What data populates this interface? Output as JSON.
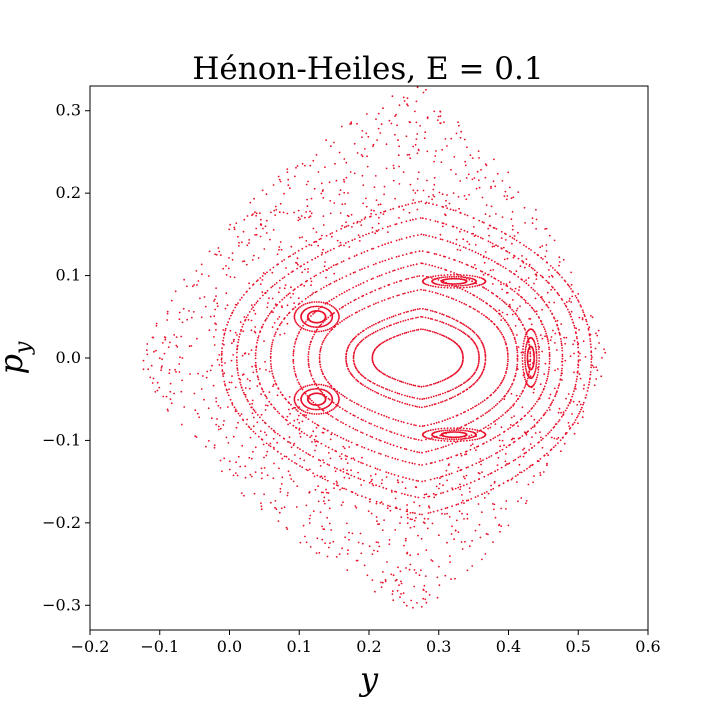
{
  "chart_data": {
    "type": "scatter",
    "title": "Hénon-Heiles, E = 0.1",
    "xlabel": "y",
    "ylabel_base": "p",
    "ylabel_sub": "y",
    "xlim": [
      -0.2,
      0.6
    ],
    "ylim": [
      -0.33,
      0.33
    ],
    "xticks": [
      -0.2,
      -0.1,
      0.0,
      0.1,
      0.2,
      0.3,
      0.4,
      0.5,
      0.6
    ],
    "xtick_labels": [
      "−0.2",
      "−0.1",
      "0.0",
      "0.1",
      "0.2",
      "0.3",
      "0.4",
      "0.5",
      "0.6"
    ],
    "yticks": [
      0.3,
      0.2,
      0.1,
      0.0,
      -0.1,
      -0.2,
      -0.3
    ],
    "ytick_labels": [
      "0.3",
      "0.2",
      "0.1",
      "0.0",
      "−0.1",
      "−0.2",
      "−0.3"
    ],
    "grid": false,
    "marker_color": "#e8102a",
    "regular_orbits": [
      {
        "center": [
          0.275,
          0.0
        ],
        "ry_x": 0.065,
        "ry_p": 0.035
      },
      {
        "center": [
          0.275,
          0.0
        ],
        "ry_x": 0.09,
        "ry_p": 0.05
      },
      {
        "center": [
          0.275,
          0.0
        ],
        "ry_x": 0.1,
        "ry_p": 0.06
      },
      {
        "center": [
          0.275,
          0.0
        ],
        "ry_x": 0.135,
        "ry_p": 0.083
      },
      {
        "center": [
          0.275,
          0.0
        ],
        "ry_x": 0.15,
        "ry_p": 0.1
      },
      {
        "center": [
          0.275,
          0.0
        ],
        "ry_x": 0.17,
        "ry_p": 0.115
      },
      {
        "center": [
          0.275,
          0.0
        ],
        "ry_x": 0.2,
        "ry_p": 0.13
      },
      {
        "center": [
          0.275,
          0.0
        ],
        "ry_x": 0.22,
        "ry_p": 0.15
      },
      {
        "center": [
          0.275,
          0.0
        ],
        "ry_x": 0.245,
        "ry_p": 0.17
      },
      {
        "center": [
          0.275,
          0.0
        ],
        "ry_x": 0.265,
        "ry_p": 0.19
      }
    ],
    "islands": [
      {
        "center": [
          0.322,
          0.093
        ],
        "rx": 0.045,
        "rp": 0.008
      },
      {
        "center": [
          0.322,
          -0.093
        ],
        "rx": 0.045,
        "rp": 0.008
      },
      {
        "center": [
          0.432,
          0.0
        ],
        "rx": 0.012,
        "rp": 0.035
      },
      {
        "center": [
          0.125,
          0.05
        ],
        "rx": 0.032,
        "rp": 0.018
      },
      {
        "center": [
          0.125,
          -0.05
        ],
        "rx": 0.032,
        "rp": 0.018
      }
    ],
    "chaotic_region": {
      "xmin": -0.13,
      "xmax": 0.54,
      "pmin": -0.305,
      "pmax": 0.33,
      "point_count": 1400
    }
  }
}
